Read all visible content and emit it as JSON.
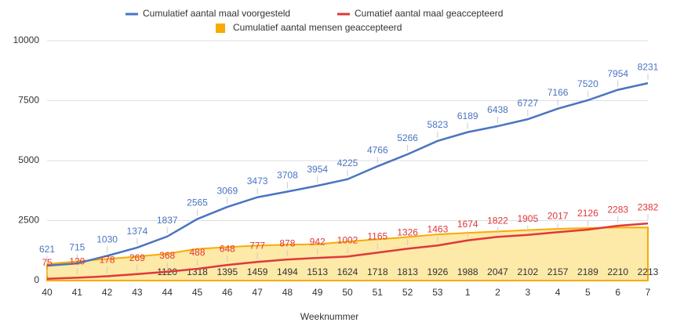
{
  "chart_data": {
    "type": "line",
    "x_label": "Weeknummer",
    "categories": [
      "40",
      "41",
      "42",
      "43",
      "44",
      "45",
      "46",
      "47",
      "48",
      "49",
      "50",
      "51",
      "52",
      "53",
      "1",
      "2",
      "3",
      "4",
      "5",
      "6",
      "7"
    ],
    "series": [
      {
        "name": "Cumulatief aantal maal voorgesteld",
        "color": "#4a74c1",
        "type": "line",
        "values": [
          621,
          715,
          1030,
          1374,
          1837,
          2565,
          3069,
          3473,
          3708,
          3954,
          4225,
          4766,
          5266,
          5823,
          6189,
          6438,
          6727,
          7166,
          7520,
          7954,
          8231
        ]
      },
      {
        "name": "Cumatief aantal maal geaccepteerd",
        "color": "#e0383a",
        "type": "line",
        "values": [
          75,
          120,
          178,
          269,
          368,
          488,
          648,
          777,
          878,
          942,
          1002,
          1165,
          1326,
          1463,
          1674,
          1822,
          1905,
          2017,
          2126,
          2283,
          2382
        ]
      },
      {
        "name": "Cumulatief aantal mensen geaccepteerd",
        "color": "#f9ab00",
        "type": "area",
        "values": [
          690,
          800,
          900,
          1000,
          1120,
          1318,
          1395,
          1459,
          1494,
          1513,
          1624,
          1718,
          1813,
          1926,
          1988,
          2047,
          2102,
          2157,
          2189,
          2210,
          2213
        ],
        "value_labels": [
          null,
          null,
          null,
          null,
          "1120",
          "1318",
          "1395",
          "1459",
          "1494",
          "1513",
          "1624",
          "1718",
          "1813",
          "1926",
          "1988",
          "2047",
          "2102",
          "2157",
          "2189",
          "2210",
          "2213"
        ]
      }
    ],
    "ylim": [
      0,
      10000
    ],
    "yticks": [
      0,
      2500,
      5000,
      7500,
      10000
    ],
    "grid": true,
    "legend": "top"
  }
}
